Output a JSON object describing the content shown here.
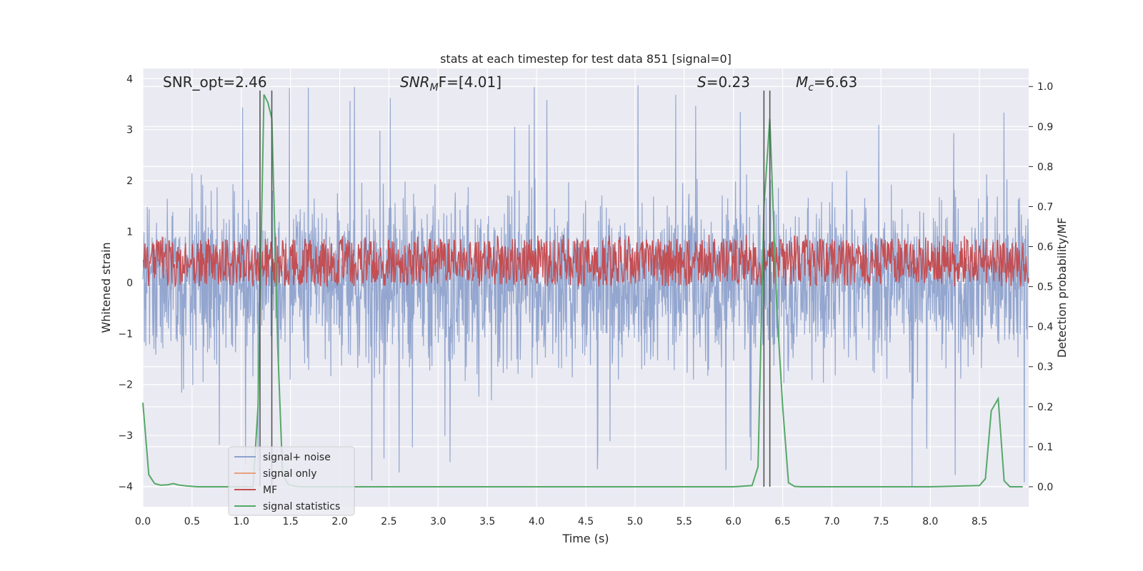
{
  "chart_data": {
    "type": "line",
    "title": "stats at each timestep for test data 851 [signal=0]",
    "xlabel": "Time (s)",
    "ylabel_left": "Whitened strain",
    "ylabel_right": "Detection probability/MF",
    "xlim": [
      0,
      9
    ],
    "ylim_left": [
      -4.4,
      4.2
    ],
    "ylim_right": [
      -0.05,
      1.045
    ],
    "x_ticks": [
      "0.0",
      "0.5",
      "1.0",
      "1.5",
      "2.0",
      "2.5",
      "3.0",
      "3.5",
      "4.0",
      "4.5",
      "5.0",
      "5.5",
      "6.0",
      "6.5",
      "7.0",
      "7.5",
      "8.0",
      "8.5"
    ],
    "y_left_ticks": [
      {
        "value": 4,
        "label": "4"
      },
      {
        "value": 3,
        "label": "3"
      },
      {
        "value": 2,
        "label": "2"
      },
      {
        "value": 1,
        "label": "1"
      },
      {
        "value": 0,
        "label": "0"
      },
      {
        "value": -1,
        "label": "−1"
      },
      {
        "value": -2,
        "label": "−2"
      },
      {
        "value": -3,
        "label": "−3"
      },
      {
        "value": -4,
        "label": "−4"
      }
    ],
    "y_right_ticks": [
      "0.0",
      "0.1",
      "0.2",
      "0.3",
      "0.4",
      "0.5",
      "0.6",
      "0.7",
      "0.8",
      "0.9",
      "1.0"
    ],
    "grid": true,
    "legend_position": "lower-left",
    "annotations": [
      {
        "id": "snr_opt",
        "text": "SNR_opt=2.46"
      },
      {
        "id": "snr_mf",
        "sym": "SNR",
        "sub": "M",
        "after": "F=[4.01]"
      },
      {
        "id": "s",
        "sym": "S",
        "after": "=0.23"
      },
      {
        "id": "mc",
        "sym": "M",
        "sub": "c",
        "after": "=6.63"
      }
    ],
    "vertical_lines_x": [
      1.19,
      1.31,
      6.31,
      6.37
    ],
    "series": [
      {
        "name": "signal+ noise",
        "color": "#8ea2cc",
        "axis": "left",
        "style": "noise",
        "noise_range": [
          -2.4,
          2.4
        ],
        "peak_max": 3.9,
        "peak_min": -4.0
      },
      {
        "name": "signal only",
        "color": "#e8a082",
        "axis": "left",
        "values": []
      },
      {
        "name": "MF",
        "color": "#c44e52",
        "axis": "right",
        "style": "noise",
        "noise_range": [
          0.5,
          0.62
        ],
        "peak_max": 0.63
      },
      {
        "name": "signal statistics",
        "color": "#55a868",
        "axis": "right",
        "x": [
          0.0,
          0.06,
          0.12,
          0.18,
          0.25,
          0.31,
          0.37,
          0.44,
          0.5,
          0.56,
          0.62,
          0.69,
          0.75,
          0.81,
          0.87,
          0.94,
          1.0,
          1.06,
          1.12,
          1.17,
          1.23,
          1.27,
          1.31,
          1.37,
          1.42,
          1.48,
          1.56,
          1.62,
          1.69,
          1.75,
          2.0,
          3.0,
          4.0,
          5.0,
          6.0,
          6.19,
          6.25,
          6.31,
          6.37,
          6.44,
          6.5,
          6.56,
          6.62,
          6.69,
          7.0,
          7.5,
          8.0,
          8.5,
          8.56,
          8.62,
          8.69,
          8.75,
          8.81,
          8.87,
          8.94
        ],
        "values": [
          0.21,
          0.03,
          0.008,
          0.004,
          0.005,
          0.008,
          0.004,
          0.002,
          0.001,
          0.0,
          0.0,
          0.0,
          0.0,
          0.0,
          0.0,
          0.0,
          0.0,
          0.0,
          0.0,
          0.2,
          0.98,
          0.96,
          0.92,
          0.35,
          0.03,
          0.005,
          0.001,
          0.0,
          0.0,
          0.0,
          0.0,
          0.0,
          0.0,
          0.0,
          0.0,
          0.003,
          0.05,
          0.7,
          0.92,
          0.45,
          0.2,
          0.01,
          0.001,
          0.0,
          0.0,
          0.0,
          0.0,
          0.003,
          0.02,
          0.19,
          0.22,
          0.015,
          0.0,
          0.0,
          0.0
        ]
      }
    ]
  }
}
